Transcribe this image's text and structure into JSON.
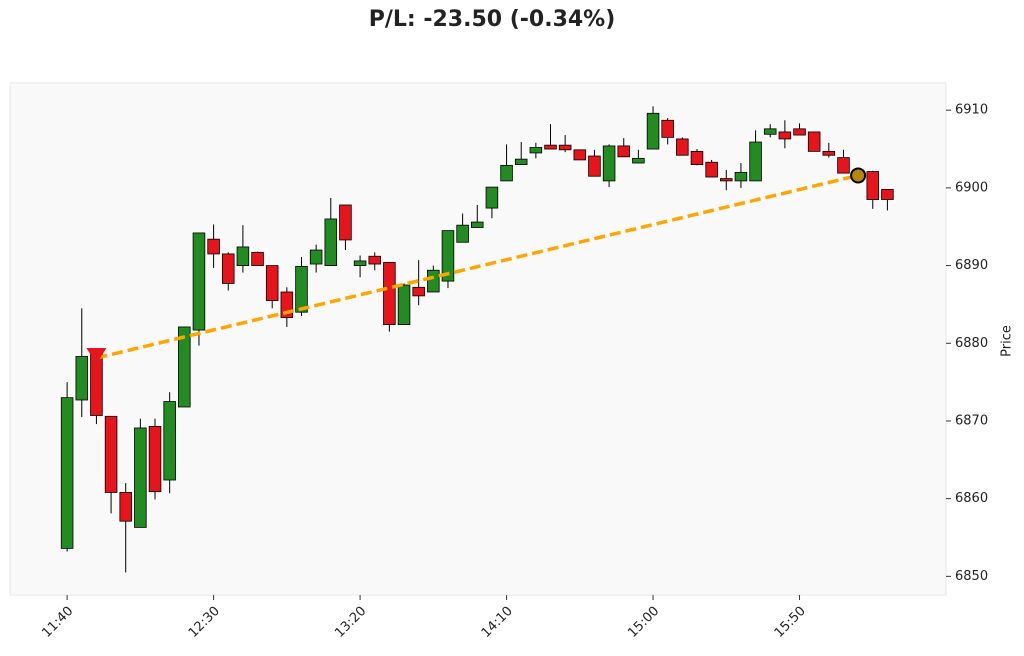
{
  "chart_data": {
    "type": "candlestick",
    "title": "P/L: -23.50 (-0.34%)",
    "y_label": "Price",
    "x": [
      700,
      705,
      710,
      715,
      720,
      725,
      730,
      735,
      740,
      745,
      750,
      755,
      760,
      765,
      770,
      775,
      780,
      785,
      790,
      795,
      800,
      805,
      810,
      815,
      820,
      825,
      830,
      835,
      840,
      845,
      850,
      855,
      860,
      865,
      870,
      875,
      880,
      885,
      890,
      895,
      900,
      905,
      910,
      915,
      920,
      925,
      930,
      935,
      940,
      945,
      950,
      955,
      960,
      965,
      970,
      975,
      980
    ],
    "open": [
      6853.6,
      6872.7,
      6878.8,
      6870.6,
      6860.8,
      6856.3,
      6869.3,
      6862.4,
      6871.8,
      6881.7,
      6893.4,
      6891.5,
      6890.0,
      6891.7,
      6890.0,
      6886.6,
      6884.0,
      6890.2,
      6890.0,
      6897.8,
      6890.0,
      6891.2,
      6890.4,
      6882.4,
      6887.2,
      6886.6,
      6888.0,
      6893.0,
      6894.9,
      6897.4,
      6900.9,
      6903.0,
      6904.5,
      6905.5,
      6905.5,
      6904.9,
      6904.1,
      6900.9,
      6905.4,
      6903.2,
      6905.0,
      6908.7,
      6906.3,
      6904.7,
      6903.3,
      6901.2,
      6900.9,
      6900.9,
      6906.9,
      6907.2,
      6907.6,
      6907.2,
      6904.7,
      6903.9,
      6902.0,
      6902.1,
      6899.8
    ],
    "high": [
      6875.0,
      6884.5,
      6878.8,
      6870.6,
      6862.0,
      6870.3,
      6870.3,
      6873.7,
      6882.1,
      6894.2,
      6895.3,
      6891.7,
      6895.2,
      6891.8,
      6890.0,
      6887.2,
      6891.1,
      6892.7,
      6898.7,
      6897.8,
      6891.3,
      6891.7,
      6890.4,
      6887.7,
      6890.7,
      6890.0,
      6894.5,
      6896.7,
      6897.8,
      6900.1,
      6905.6,
      6905.9,
      6905.8,
      6908.2,
      6906.8,
      6904.9,
      6904.9,
      6905.6,
      6906.4,
      6904.9,
      6910.5,
      6909.0,
      6906.5,
      6905.0,
      6903.6,
      6902.3,
      6903.2,
      6907.4,
      6908.2,
      6908.7,
      6908.3,
      6907.2,
      6905.8,
      6904.9,
      6902.3,
      6902.2,
      6899.8
    ],
    "low": [
      6853.2,
      6870.5,
      6869.6,
      6858.1,
      6850.5,
      6856.3,
      6859.9,
      6860.7,
      6871.8,
      6879.7,
      6889.7,
      6886.8,
      6889.1,
      6890.0,
      6884.5,
      6882.1,
      6883.5,
      6889.1,
      6890.0,
      6892.0,
      6888.5,
      6889.4,
      6881.5,
      6882.4,
      6884.9,
      6886.6,
      6887.1,
      6893.0,
      6894.9,
      6896.1,
      6900.9,
      6903.0,
      6903.8,
      6905.0,
      6904.6,
      6903.6,
      6901.5,
      6900.1,
      6904.0,
      6903.2,
      6905.0,
      6905.6,
      6904.2,
      6902.9,
      6901.4,
      6899.7,
      6900.0,
      6900.9,
      6906.5,
      6905.1,
      6906.8,
      6904.7,
      6903.9,
      6901.9,
      6901.2,
      6897.3,
      6897.1
    ],
    "close": [
      6873.0,
      6878.3,
      6870.7,
      6860.8,
      6857.1,
      6869.1,
      6860.9,
      6872.5,
      6882.1,
      6894.2,
      6891.5,
      6887.7,
      6892.4,
      6890.0,
      6885.5,
      6883.3,
      6889.9,
      6892.0,
      6896.0,
      6893.3,
      6890.6,
      6890.2,
      6882.4,
      6887.5,
      6886.1,
      6889.4,
      6894.5,
      6895.2,
      6895.6,
      6900.1,
      6902.9,
      6903.7,
      6905.2,
      6905.0,
      6904.9,
      6903.6,
      6901.5,
      6905.4,
      6904.0,
      6903.8,
      6909.6,
      6906.5,
      6904.2,
      6903.0,
      6901.4,
      6900.9,
      6902.0,
      6905.9,
      6907.6,
      6906.3,
      6906.8,
      6904.7,
      6904.2,
      6901.9,
      6901.5,
      6898.5,
      6898.5
    ],
    "up_color": "#228b22",
    "down_color": "#e8141c",
    "trade": {
      "entry_x": 710,
      "entry_price": 6878.1,
      "exit_x": 970,
      "exit_price": 6901.6,
      "line_color": "#ffa500",
      "entry_color": "#e8141c",
      "exit_color": "#b8860b"
    },
    "xlim": [
      680.5,
      1000
    ],
    "ylim": [
      6847.6,
      6913.5
    ],
    "xticks": [
      {
        "value": 700,
        "label": "11:40"
      },
      {
        "value": 750,
        "label": "12:30"
      },
      {
        "value": 800,
        "label": "13:20"
      },
      {
        "value": 850,
        "label": "14:10"
      },
      {
        "value": 900,
        "label": "15:00"
      },
      {
        "value": 950,
        "label": "15:50"
      }
    ],
    "yticks": [
      6850,
      6860,
      6870,
      6880,
      6890,
      6900,
      6910
    ]
  }
}
